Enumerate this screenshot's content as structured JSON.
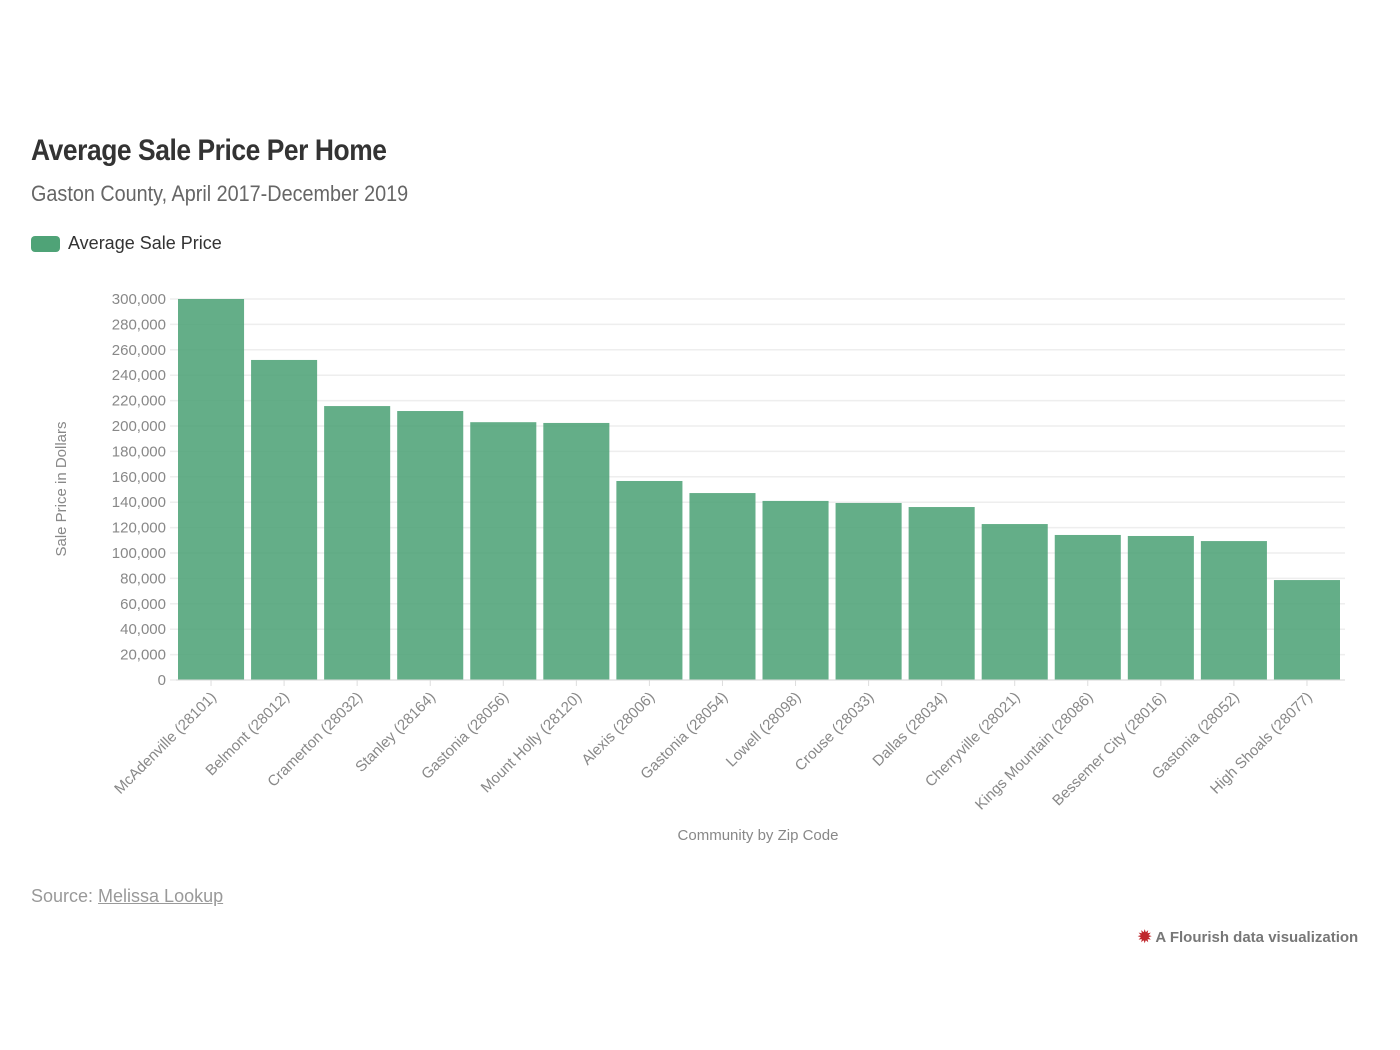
{
  "header": {
    "title": "Average Sale Price Per Home",
    "subtitle": "Gaston County, April 2017-December 2019"
  },
  "legend": {
    "label": "Average Sale Price",
    "color": "#4fa377"
  },
  "footer": {
    "source_prefix": "Source: ",
    "source_link": "Melissa Lookup",
    "credit": "A Flourish data visualization"
  },
  "chart_data": {
    "type": "bar",
    "title": "Average Sale Price Per Home",
    "xlabel": "Community by Zip Code",
    "ylabel": "Sale Price in Dollars",
    "ylim": [
      0,
      300000
    ],
    "yticks": [
      0,
      20000,
      40000,
      60000,
      80000,
      100000,
      120000,
      140000,
      160000,
      180000,
      200000,
      220000,
      240000,
      260000,
      280000,
      300000
    ],
    "ytick_labels": [
      "0",
      "20,000",
      "40,000",
      "60,000",
      "80,000",
      "100,000",
      "120,000",
      "140,000",
      "160,000",
      "180,000",
      "200,000",
      "220,000",
      "240,000",
      "260,000",
      "280,000",
      "300,000"
    ],
    "grid": true,
    "legend_position": "top-left",
    "categories": [
      "McAdenville (28101)",
      "Belmont (28012)",
      "Cramerton (28032)",
      "Stanley (28164)",
      "Gastonia (28056)",
      "Mount Holly (28120)",
      "Alexis (28006)",
      "Gastonia (28054)",
      "Lowell (28098)",
      "Crouse (28033)",
      "Dallas (28034)",
      "Cherryville (28021)",
      "Kings Mountain (28086)",
      "Bessemer City (28016)",
      "Gastonia (28052)",
      "High Shoals (28077)"
    ],
    "series": [
      {
        "name": "Average Sale Price",
        "values": [
          300000,
          252000,
          215700,
          211800,
          203000,
          202400,
          156700,
          147200,
          141000,
          139400,
          136200,
          122800,
          114200,
          113400,
          109400,
          78700
        ]
      }
    ]
  }
}
